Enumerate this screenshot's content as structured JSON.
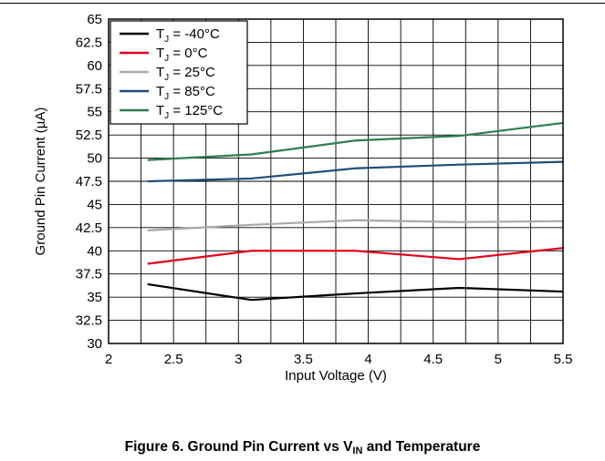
{
  "chart_data": {
    "type": "line",
    "xlabel": "Input Voltage (V)",
    "ylabel": "Ground Pin Current (µA)",
    "xlim": [
      2,
      5.5
    ],
    "ylim": [
      30,
      65
    ],
    "xticks": [
      2,
      2.5,
      3,
      3.5,
      4,
      4.5,
      5,
      5.5
    ],
    "xtick_labels": [
      "2",
      "2.5",
      "3",
      "3.5",
      "4",
      "4.5",
      "5",
      "5.5"
    ],
    "yticks": [
      30,
      32.5,
      35,
      37.5,
      40,
      42.5,
      45,
      47.5,
      50,
      52.5,
      55,
      57.5,
      60,
      62.5,
      65
    ],
    "ytick_labels": [
      "30",
      "32.5",
      "35",
      "37.5",
      "40",
      "42.5",
      "45",
      "47.5",
      "50",
      "52.5",
      "55",
      "57.5",
      "60",
      "62.5",
      "65"
    ],
    "x_minor_per_major": 2,
    "grid": true,
    "legend_position": "top-left",
    "series": [
      {
        "name": "-40°C",
        "color": "#000000",
        "x": [
          2.3,
          3.1,
          3.9,
          4.7,
          5.5
        ],
        "values": [
          36.4,
          34.7,
          35.4,
          36.0,
          35.6
        ]
      },
      {
        "name": "0°C",
        "color": "#e3001b",
        "x": [
          2.3,
          3.1,
          3.9,
          4.7,
          5.5
        ],
        "values": [
          38.6,
          40.0,
          40.0,
          39.1,
          40.3
        ]
      },
      {
        "name": "25°C",
        "color": "#a9a9a9",
        "x": [
          2.3,
          3.1,
          3.9,
          4.7,
          5.5
        ],
        "values": [
          42.2,
          42.8,
          43.3,
          43.1,
          43.2
        ]
      },
      {
        "name": "85°C",
        "color": "#1f4e79",
        "x": [
          2.3,
          3.1,
          3.9,
          4.7,
          5.5
        ],
        "values": [
          47.5,
          47.8,
          48.9,
          49.3,
          49.6
        ]
      },
      {
        "name": "125°C",
        "color": "#2e7d4f",
        "x": [
          2.3,
          3.1,
          3.9,
          4.7,
          5.5
        ],
        "values": [
          49.8,
          50.4,
          51.9,
          52.4,
          53.8
        ]
      }
    ],
    "legend_prefix": "T",
    "legend_sub": "J",
    "legend_eq": " = "
  },
  "caption": {
    "prefix": "Figure 6. Ground Pin Current vs V",
    "sub": "IN",
    "suffix": " and Temperature"
  }
}
